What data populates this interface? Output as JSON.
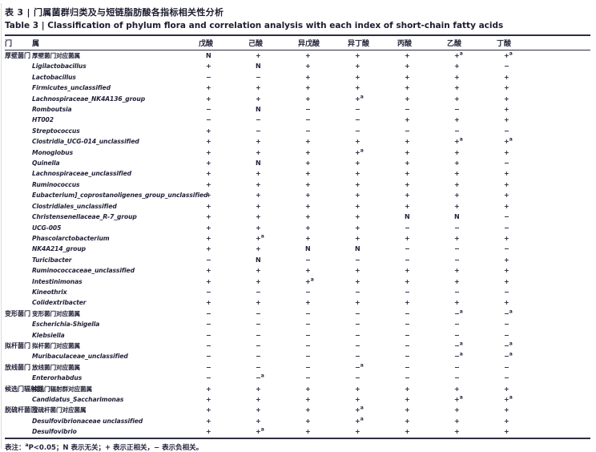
{
  "page": {
    "title_zh": "表 3 | 门属菌群归类及与短链脂肪酸各指标相关性分析",
    "title_en": "Table 3 | Classification of phylum flora and correlation analysis with each index of short-chain fatty acids"
  },
  "table": {
    "columns": [
      "门",
      "属",
      "戊酸",
      "己酸",
      "异戊酸",
      "异丁酸",
      "丙酸",
      "乙酸",
      "丁酸"
    ],
    "rows": [
      {
        "phylum": "厚壁菌门",
        "span": 24,
        "genus": "厚壁菌门对应菌属",
        "italic": false,
        "values": [
          "N",
          "+",
          "+",
          "+",
          "+",
          "+a",
          "+a"
        ]
      },
      {
        "genus": "Ligilactobacillus",
        "italic": true,
        "values": [
          "+",
          "N",
          "+",
          "+",
          "+",
          "+",
          "−"
        ]
      },
      {
        "genus": "Lactobacillus",
        "italic": true,
        "values": [
          "−",
          "−",
          "+",
          "+",
          "+",
          "+",
          "+"
        ]
      },
      {
        "genus": "Firmicutes_unclassified",
        "italic": true,
        "values": [
          "+",
          "+",
          "+",
          "+",
          "+",
          "+",
          "+"
        ]
      },
      {
        "genus": "Lachnospiraceae_NK4A136_group",
        "italic": true,
        "values": [
          "+",
          "+",
          "+",
          "+a",
          "+",
          "+",
          "+"
        ]
      },
      {
        "genus": "Romboutsia",
        "italic": true,
        "values": [
          "−",
          "N",
          "−",
          "−",
          "−",
          "−",
          "+"
        ]
      },
      {
        "genus": "HT002",
        "italic": true,
        "values": [
          "−",
          "−",
          "−",
          "−",
          "+",
          "+",
          "+"
        ]
      },
      {
        "genus": "Streptococcus",
        "italic": true,
        "values": [
          "+",
          "−",
          "−",
          "−",
          "−",
          "−",
          "−"
        ]
      },
      {
        "genus": "Clostridia_UCG-014_unclassified",
        "italic": true,
        "values": [
          "+",
          "+",
          "+",
          "+",
          "+",
          "+a",
          "+a"
        ]
      },
      {
        "genus": "Monoglobus",
        "italic": true,
        "values": [
          "+",
          "+",
          "+",
          "+a",
          "+",
          "+",
          "+"
        ]
      },
      {
        "genus": "Quinella",
        "italic": true,
        "values": [
          "+",
          "N",
          "+",
          "+",
          "+",
          "+",
          "−"
        ]
      },
      {
        "genus": "Lachnospiraceae_unclassified",
        "italic": true,
        "values": [
          "+",
          "+",
          "+",
          "+",
          "+",
          "+",
          "+"
        ]
      },
      {
        "genus": "Ruminococcus",
        "italic": true,
        "values": [
          "+",
          "+",
          "+",
          "+",
          "+",
          "+",
          "+"
        ]
      },
      {
        "genus": "Eubacterium]_coprostanoligenes_group_unclassified",
        "italic": true,
        "values": [
          "+",
          "+",
          "+",
          "+",
          "+",
          "+",
          "+"
        ]
      },
      {
        "genus": "Clostridiales_unclassified",
        "italic": true,
        "values": [
          "+",
          "+",
          "+",
          "+",
          "+",
          "+",
          "+"
        ]
      },
      {
        "genus": "Christensenellaceae_R-7_group",
        "italic": true,
        "values": [
          "+",
          "+",
          "+",
          "+",
          "N",
          "N",
          "−"
        ]
      },
      {
        "genus": "UCG-005",
        "italic": true,
        "values": [
          "+",
          "+",
          "+",
          "+",
          "−",
          "−",
          "−"
        ]
      },
      {
        "genus": "Phascolarctobacterium",
        "italic": true,
        "values": [
          "+",
          "+a",
          "+",
          "+",
          "+",
          "+",
          "+"
        ]
      },
      {
        "genus": "NK4A214_group",
        "italic": true,
        "values": [
          "+",
          "+",
          "N",
          "N",
          "−",
          "−",
          "−"
        ]
      },
      {
        "genus": "Turicibacter",
        "italic": true,
        "values": [
          "−",
          "N",
          "−",
          "−",
          "−",
          "−",
          "+"
        ]
      },
      {
        "genus": "Ruminococcaceae_unclassified",
        "italic": true,
        "values": [
          "+",
          "+",
          "+",
          "+",
          "+",
          "+",
          "+"
        ]
      },
      {
        "genus": "Intestinimonas",
        "italic": true,
        "values": [
          "+",
          "+",
          "+a",
          "+",
          "+",
          "+",
          "+"
        ]
      },
      {
        "genus": "Kineothrix",
        "italic": true,
        "values": [
          "−",
          "−",
          "−",
          "−",
          "−",
          "−",
          "−"
        ]
      },
      {
        "genus": "Colidextribacter",
        "italic": true,
        "values": [
          "+",
          "+",
          "+",
          "+",
          "+",
          "+",
          "+"
        ]
      },
      {
        "phylum": "变形菌门",
        "span": 3,
        "genus": "变形菌门对应菌属",
        "italic": false,
        "values": [
          "−",
          "−",
          "−",
          "−",
          "−",
          "−a",
          "−a"
        ]
      },
      {
        "genus": "Escherichia-Shigella",
        "italic": true,
        "values": [
          "−",
          "−",
          "−",
          "−",
          "−",
          "−",
          "−"
        ]
      },
      {
        "genus": "Klebsiella",
        "italic": true,
        "values": [
          "−",
          "−",
          "−",
          "−",
          "−",
          "−",
          "−"
        ]
      },
      {
        "phylum": "拟杆菌门",
        "span": 2,
        "genus": "拟杆菌门对应菌属",
        "italic": false,
        "values": [
          "−",
          "−",
          "−",
          "−",
          "−",
          "−a",
          "−a"
        ]
      },
      {
        "genus": "Muribaculaceae_unclassified",
        "italic": true,
        "values": [
          "−",
          "−",
          "−",
          "−",
          "−",
          "−a",
          "−a"
        ]
      },
      {
        "phylum": "放线菌门",
        "span": 2,
        "genus": "放线菌门对应菌属",
        "italic": false,
        "values": [
          "−",
          "−",
          "−",
          "−a",
          "−",
          "−",
          "−"
        ]
      },
      {
        "genus": "Enterorhabdus",
        "italic": true,
        "values": [
          "−",
          "−a",
          "−",
          "−",
          "−",
          "−",
          "−"
        ]
      },
      {
        "phylum": "候选门辐射群",
        "span": 2,
        "genus": "候选门辐射群对应菌属",
        "italic": false,
        "values": [
          "+",
          "+",
          "+",
          "+",
          "+",
          "+",
          "+"
        ]
      },
      {
        "genus": "Candidatus_Saccharimonas",
        "italic": true,
        "values": [
          "+",
          "+",
          "+",
          "+",
          "+",
          "+a",
          "+a"
        ]
      },
      {
        "phylum": "脱硫杆菌门",
        "span": 3,
        "genus": "脱硫杆菌门对应菌属",
        "italic": false,
        "values": [
          "+",
          "+",
          "+",
          "+a",
          "+",
          "+",
          "+"
        ]
      },
      {
        "genus": "Desulfovibrionaceae unclassified",
        "italic": true,
        "values": [
          "+",
          "+",
          "+",
          "+a",
          "+",
          "+",
          "+"
        ]
      },
      {
        "genus": "Desulfovibrio",
        "italic": true,
        "values": [
          "+",
          "+a",
          "+",
          "+",
          "+",
          "+",
          "+"
        ]
      }
    ]
  },
  "footnote": {
    "prefix": "表注：",
    "sup": "a",
    "text": "P<0.05；N 表示无关；+ 表示正相关，− 表示负相关。"
  }
}
